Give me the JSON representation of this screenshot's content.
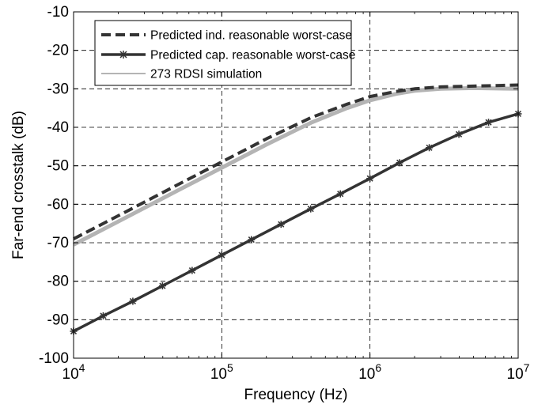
{
  "chart_data": {
    "type": "line",
    "title": "",
    "xlabel": "Frequency (Hz)",
    "ylabel": "Far-end crosstalk (dB)",
    "x_scale": "log",
    "xlim": [
      10000,
      10000000
    ],
    "ylim": [
      -100,
      -10
    ],
    "grid": true,
    "legend_position": "top-left",
    "x_ticks": [
      {
        "value": 10000,
        "base": "10",
        "exp": "4"
      },
      {
        "value": 100000,
        "base": "10",
        "exp": "5"
      },
      {
        "value": 1000000,
        "base": "10",
        "exp": "6"
      },
      {
        "value": 10000000,
        "base": "10",
        "exp": "7"
      }
    ],
    "y_ticks": [
      -10,
      -20,
      -30,
      -40,
      -50,
      -60,
      -70,
      -80,
      -90,
      -100
    ],
    "series": [
      {
        "name": "Predicted ind. reasonable worst-case",
        "style": "dashed",
        "color": "#333333",
        "x": [
          10000,
          20000,
          50000,
          100000,
          200000,
          400000,
          700000,
          1000000,
          1500000,
          2000000,
          3000000,
          5000000,
          10000000
        ],
        "values": [
          -69,
          -63,
          -55,
          -49,
          -43,
          -37.5,
          -34,
          -32,
          -30.7,
          -30,
          -29.5,
          -29.3,
          -29
        ]
      },
      {
        "name": "Predicted cap. reasonable worst-case",
        "style": "solid-markers",
        "color": "#333333",
        "x": [
          10000,
          15850,
          25120,
          39810,
          63100,
          100000,
          158500,
          251200,
          398100,
          631000,
          1000000,
          1585000,
          2512000,
          3981000,
          6310000,
          10000000
        ],
        "values": [
          -93,
          -89,
          -85.2,
          -81.2,
          -77.2,
          -73.2,
          -69.2,
          -65.2,
          -61.2,
          -57.3,
          -53.3,
          -49.2,
          -45.3,
          -41.8,
          -38.7,
          -36.5
        ]
      },
      {
        "name": "273 RDSI simulation",
        "style": "solid-thick",
        "color": "#b4b4b4",
        "x": [
          10000,
          20000,
          50000,
          100000,
          200000,
          400000,
          700000,
          1000000,
          1500000,
          2000000,
          3000000,
          5000000,
          10000000
        ],
        "values": [
          -70.5,
          -64.5,
          -56.5,
          -50.5,
          -44.5,
          -38.8,
          -35,
          -33,
          -31.3,
          -30.5,
          -30,
          -29.8,
          -30
        ]
      }
    ]
  }
}
